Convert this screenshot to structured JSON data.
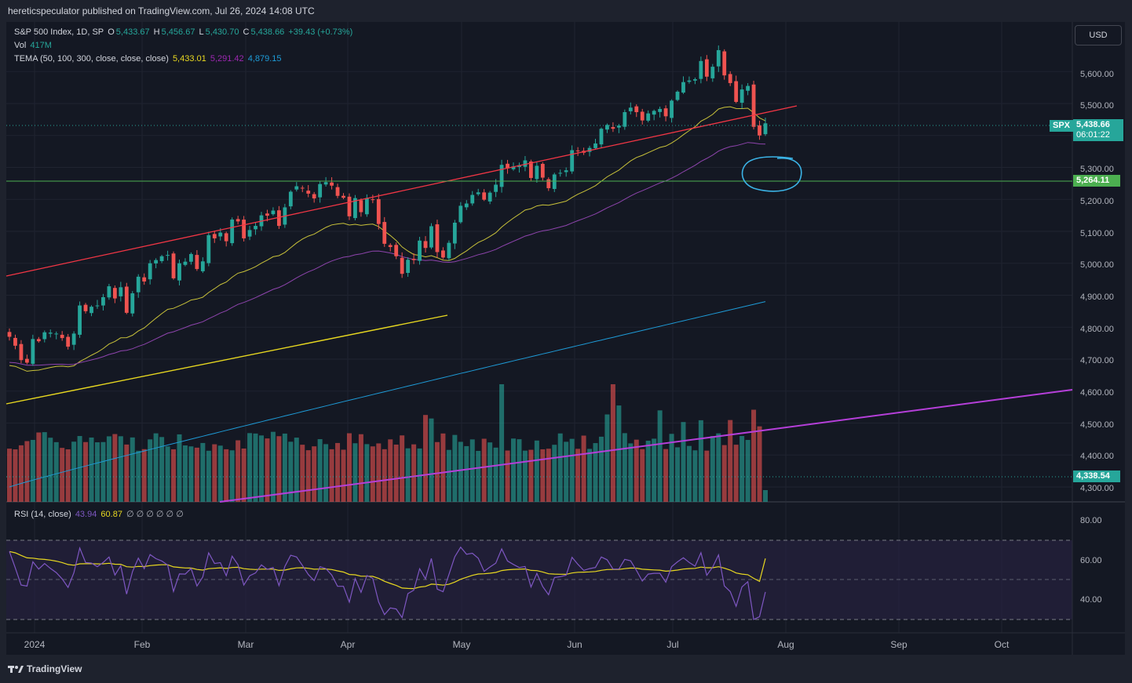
{
  "header": {
    "published_text": "hereticspeculator published on TradingView.com, Jul 26, 2024 14:08 UTC"
  },
  "legend": {
    "symbol": "S&P 500 Index, 1D, SP",
    "open_label": "O",
    "open": "5,433.67",
    "high_label": "H",
    "high": "5,456.67",
    "low_label": "L",
    "low": "5,430.70",
    "close_label": "C",
    "close": "5,438.66",
    "change": "+39.43 (+0.73%)",
    "vol_label": "Vol",
    "vol": "417M",
    "tema_label": "TEMA (50, 100, 300, close, close, close)",
    "tema1": "5,433.01",
    "tema2": "5,291.42",
    "tema3": "4,879.15",
    "rsi_label": "RSI (14, close)",
    "rsi": "43.94",
    "rsi_ma": "60.87",
    "rsi_extra": "∅ ∅ ∅ ∅ ∅ ∅"
  },
  "currency_button": "USD",
  "price_axis": {
    "ticks": [
      "5,600.00",
      "5,500.00",
      "5,300.00",
      "5,200.00",
      "5,100.00",
      "5,000.00",
      "4,900.00",
      "4,800.00",
      "4,700.00",
      "4,600.00",
      "4,500.00",
      "4,400.00",
      "4,300.00"
    ],
    "spx_tag": "SPX",
    "last_price": "5,438.66",
    "countdown": "06:01:22",
    "hline_price": "5,264.11",
    "low_price": "4,338.54"
  },
  "rsi_axis": {
    "ticks": [
      "80.00",
      "60.00",
      "40.00"
    ]
  },
  "time_axis": {
    "labels": [
      "2024",
      "Feb",
      "Mar",
      "Apr",
      "May",
      "Jun",
      "Jul",
      "Aug",
      "Sep",
      "Oct"
    ]
  },
  "footer": {
    "brand": "TradingView"
  },
  "colors": {
    "up": "#26a69a",
    "down": "#ef5350",
    "bg": "#141823",
    "tema1": "#c9c23a",
    "tema2": "#8e44ad",
    "tema3": "#1e9bd7",
    "trend_red": "#f23645",
    "trend_yellow": "#e8d820",
    "trend_purple": "#b53fd9",
    "hline": "#4caf50",
    "circle": "#3bb3e6",
    "rsi": "#7e57c2",
    "rsi_ma": "#e8d820"
  },
  "chart_data": {
    "type": "candlestick",
    "symbol": "S&P 500 Index, 1D, SP",
    "x_range": [
      "2024-01",
      "2024-10"
    ],
    "y_range": [
      4300,
      5680
    ],
    "hline": 5264.11,
    "last_close": 5438.66,
    "closes": [
      4770,
      4742,
      4697,
      4689,
      4763,
      4756,
      4784,
      4783,
      4780,
      4766,
      4739,
      4780,
      4868,
      4850,
      4864,
      4868,
      4894,
      4928,
      4890,
      4925,
      4845,
      4906,
      4958,
      4943,
      5000,
      5010,
      5022,
      5026,
      4953,
      5000,
      5005,
      5029,
      4982,
      5006,
      5088,
      5078,
      5096,
      5069,
      5137,
      5131,
      5078,
      5104,
      5117,
      5150,
      5149,
      5165,
      5117,
      5175,
      5224,
      5241,
      5234,
      5218,
      5203,
      5248,
      5254,
      5243,
      5211,
      5205,
      5147,
      5204,
      5160,
      5204,
      5199,
      5123,
      5061,
      5051,
      5022,
      4967,
      5011,
      5010,
      5071,
      5048,
      5116,
      5035,
      5018,
      5064,
      5127,
      5180,
      5187,
      5214,
      5222,
      5199,
      5221,
      5246,
      5308,
      5297,
      5303,
      5307,
      5322,
      5267,
      5305,
      5268,
      5235,
      5278,
      5283,
      5291,
      5354,
      5352,
      5346,
      5361,
      5375,
      5421,
      5433,
      5421,
      5431,
      5473,
      5487,
      5473,
      5447,
      5469,
      5477,
      5483,
      5460,
      5509,
      5537,
      5567,
      5572,
      5576,
      5633,
      5584,
      5615,
      5667,
      5588,
      5564,
      5505,
      5544,
      5555,
      5427,
      5400,
      5438
    ],
    "tema": {
      "tema50": 5433.01,
      "tema100": 5291.42,
      "tema300": 4879.15
    },
    "volume_label": "Vol 417M",
    "rsi": {
      "current": 43.94,
      "ma": 60.87,
      "bands": [
        70,
        50,
        30
      ],
      "y_ticks": [
        80,
        60,
        40
      ]
    }
  }
}
